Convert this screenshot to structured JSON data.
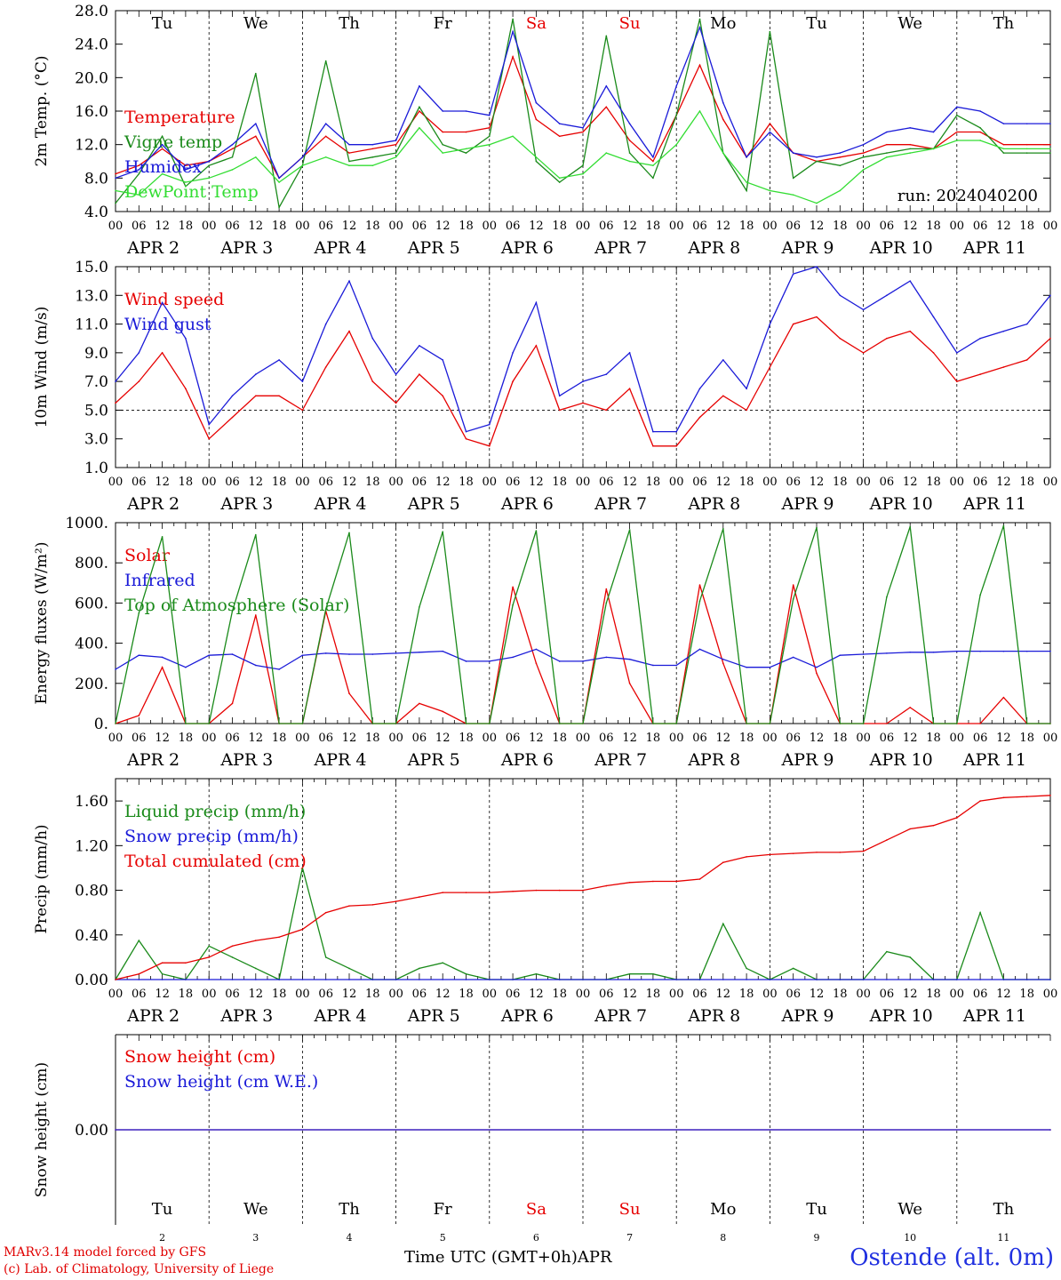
{
  "colors": {
    "red": "#e60000",
    "green": "#1a8a1a",
    "lightgreen": "#33dd33",
    "blue": "#1a1ad8",
    "weekend": "#e60000",
    "dash": "#000000"
  },
  "days": {
    "weekday_labels": [
      "Tu",
      "We",
      "Th",
      "Fr",
      "Sa",
      "Su",
      "Mo",
      "Tu",
      "We",
      "Th"
    ],
    "weekend_flags": [
      false,
      false,
      false,
      false,
      true,
      true,
      false,
      false,
      false,
      false
    ],
    "hour_ticks": [
      "00",
      "06",
      "12",
      "18"
    ],
    "month": "APR",
    "day_numbers": [
      "2",
      "3",
      "4",
      "5",
      "6",
      "7",
      "8",
      "9",
      "10",
      "11"
    ]
  },
  "chart_data": [
    {
      "type": "line",
      "ylabel": "2m Temp. (°C)",
      "ylim": [
        4.0,
        28.0
      ],
      "yticks": [
        "4.0",
        "8.0",
        "12.0",
        "16.0",
        "20.0",
        "24.0",
        "28.0"
      ],
      "annotation": "run: 2024040200",
      "x_unit": "hours since APR 2 00 UTC",
      "x": [
        0,
        6,
        12,
        18,
        24,
        30,
        36,
        42,
        48,
        54,
        60,
        66,
        72,
        78,
        84,
        90,
        96,
        102,
        108,
        114,
        120,
        126,
        132,
        138,
        144,
        150,
        156,
        162,
        168,
        174,
        180,
        186,
        192,
        198,
        204,
        210,
        216,
        222,
        228,
        234,
        240
      ],
      "series": [
        {
          "name": "Temperature",
          "color": "#e60000",
          "values": [
            8.5,
            9.5,
            11.5,
            9.5,
            10.0,
            11.5,
            13.0,
            8.0,
            10.5,
            13.0,
            11.0,
            11.5,
            12.0,
            16.0,
            13.5,
            13.5,
            14.0,
            22.5,
            15.0,
            13.0,
            13.5,
            16.5,
            12.5,
            10.0,
            15.5,
            21.5,
            15.0,
            10.5,
            14.5,
            11.0,
            10.0,
            10.5,
            11.0,
            12.0,
            12.0,
            11.5,
            13.5,
            13.5,
            12.0,
            12.0,
            12.0
          ]
        },
        {
          "name": "Vigne temp",
          "color": "#1a8a1a",
          "values": [
            5.0,
            8.5,
            13.0,
            7.0,
            9.5,
            10.5,
            20.5,
            4.5,
            9.5,
            22.0,
            10.0,
            10.5,
            11.0,
            16.5,
            12.0,
            11.0,
            13.0,
            27.0,
            10.0,
            7.5,
            9.5,
            25.0,
            11.0,
            8.0,
            15.5,
            27.0,
            11.0,
            6.5,
            25.5,
            8.0,
            10.0,
            9.5,
            10.5,
            11.0,
            11.5,
            11.5,
            15.5,
            14.0,
            11.0,
            11.0,
            11.0
          ]
        },
        {
          "name": "Humidex",
          "color": "#1a1ad8",
          "values": [
            8.0,
            9.0,
            12.0,
            9.0,
            10.0,
            12.0,
            14.5,
            8.0,
            10.5,
            14.5,
            12.0,
            12.0,
            12.5,
            19.0,
            16.0,
            16.0,
            15.5,
            25.5,
            17.0,
            14.5,
            14.0,
            19.0,
            14.5,
            10.5,
            19.0,
            26.0,
            17.0,
            10.5,
            13.5,
            11.0,
            10.5,
            11.0,
            12.0,
            13.5,
            14.0,
            13.5,
            16.5,
            16.0,
            14.5,
            14.5,
            14.5
          ]
        },
        {
          "name": "DewPoint Temp",
          "color": "#33dd33",
          "values": [
            6.5,
            6.0,
            8.5,
            7.5,
            8.0,
            9.0,
            10.5,
            7.5,
            9.5,
            10.5,
            9.5,
            9.5,
            10.5,
            14.0,
            11.0,
            11.5,
            12.0,
            13.0,
            10.5,
            8.0,
            8.5,
            11.0,
            10.0,
            9.5,
            12.0,
            16.0,
            11.0,
            7.5,
            6.5,
            6.0,
            5.0,
            6.5,
            9.0,
            10.5,
            11.0,
            11.5,
            12.5,
            12.5,
            11.5,
            11.5,
            11.5
          ]
        }
      ]
    },
    {
      "type": "line",
      "ylabel": "10m Wind (m/s)",
      "ylim": [
        1.0,
        15.0
      ],
      "yticks": [
        "1.0",
        "3.0",
        "5.0",
        "7.0",
        "9.0",
        "11.0",
        "13.0",
        "15.0"
      ],
      "ref_line": 5.0,
      "x": [
        0,
        6,
        12,
        18,
        24,
        30,
        36,
        42,
        48,
        54,
        60,
        66,
        72,
        78,
        84,
        90,
        96,
        102,
        108,
        114,
        120,
        126,
        132,
        138,
        144,
        150,
        156,
        162,
        168,
        174,
        180,
        186,
        192,
        198,
        204,
        210,
        216,
        222,
        228,
        234,
        240
      ],
      "series": [
        {
          "name": "Wind speed",
          "color": "#e60000",
          "values": [
            5.5,
            7.0,
            9.0,
            6.5,
            3.0,
            4.5,
            6.0,
            6.0,
            5.0,
            8.0,
            10.5,
            7.0,
            5.5,
            7.5,
            6.0,
            3.0,
            2.5,
            7.0,
            9.5,
            5.0,
            5.5,
            5.0,
            6.5,
            2.5,
            2.5,
            4.5,
            6.0,
            5.0,
            8.0,
            11.0,
            11.5,
            10.0,
            9.0,
            10.0,
            10.5,
            9.0,
            7.0,
            7.5,
            8.0,
            8.5,
            10.0
          ]
        },
        {
          "name": "Wind gust",
          "color": "#1a1ad8",
          "values": [
            7.0,
            9.0,
            12.5,
            10.0,
            4.0,
            6.0,
            7.5,
            8.5,
            7.0,
            11.0,
            14.0,
            10.0,
            7.5,
            9.5,
            8.5,
            3.5,
            4.0,
            9.0,
            12.5,
            6.0,
            7.0,
            7.5,
            9.0,
            3.5,
            3.5,
            6.5,
            8.5,
            6.5,
            11.0,
            14.5,
            15.0,
            13.0,
            12.0,
            13.0,
            14.0,
            11.5,
            9.0,
            10.0,
            10.5,
            11.0,
            13.0
          ]
        }
      ]
    },
    {
      "type": "line",
      "ylabel": "Energy fluxes (W/m²)",
      "ylim": [
        0,
        1000
      ],
      "yticks": [
        "0.",
        "200.",
        "400.",
        "600.",
        "800.",
        "1000."
      ],
      "x": [
        0,
        6,
        12,
        18,
        24,
        30,
        36,
        42,
        48,
        54,
        60,
        66,
        72,
        78,
        84,
        90,
        96,
        102,
        108,
        114,
        120,
        126,
        132,
        138,
        144,
        150,
        156,
        162,
        168,
        174,
        180,
        186,
        192,
        198,
        204,
        210,
        216,
        222,
        228,
        234,
        240
      ],
      "series": [
        {
          "name": "Solar",
          "color": "#e60000",
          "values": [
            0,
            40,
            280,
            0,
            0,
            100,
            540,
            0,
            0,
            560,
            150,
            0,
            0,
            100,
            60,
            0,
            0,
            680,
            300,
            0,
            0,
            670,
            200,
            0,
            0,
            690,
            300,
            0,
            0,
            690,
            250,
            0,
            0,
            0,
            80,
            0,
            0,
            0,
            130,
            0,
            0
          ]
        },
        {
          "name": "Infrared",
          "color": "#1a1ad8",
          "values": [
            270,
            340,
            330,
            280,
            340,
            345,
            290,
            270,
            340,
            350,
            345,
            345,
            350,
            355,
            360,
            310,
            310,
            330,
            370,
            310,
            310,
            330,
            320,
            290,
            290,
            370,
            320,
            280,
            280,
            330,
            280,
            340,
            345,
            350,
            355,
            355,
            360,
            360,
            360,
            360,
            360
          ]
        },
        {
          "name": "Top of Atmosphere (Solar)",
          "color": "#1a8a1a",
          "values": [
            0,
            550,
            930,
            0,
            0,
            560,
            940,
            0,
            0,
            570,
            950,
            0,
            0,
            580,
            955,
            0,
            0,
            590,
            960,
            0,
            0,
            600,
            965,
            0,
            0,
            610,
            970,
            0,
            0,
            620,
            975,
            0,
            0,
            630,
            980,
            0,
            0,
            640,
            985,
            0,
            0
          ]
        }
      ]
    },
    {
      "type": "line",
      "ylabel": "Precip (mm/h)",
      "ylim": [
        0.0,
        1.8
      ],
      "yticks": [
        "0.00",
        "0.40",
        "0.80",
        "1.20",
        "1.60"
      ],
      "x": [
        0,
        6,
        12,
        18,
        24,
        30,
        36,
        42,
        48,
        54,
        60,
        66,
        72,
        78,
        84,
        90,
        96,
        102,
        108,
        114,
        120,
        126,
        132,
        138,
        144,
        150,
        156,
        162,
        168,
        174,
        180,
        186,
        192,
        198,
        204,
        210,
        216,
        222,
        228,
        234,
        240
      ],
      "series": [
        {
          "name": "Liquid precip (mm/h)",
          "color": "#1a8a1a",
          "values": [
            0,
            0.35,
            0.05,
            0,
            0.3,
            0.2,
            0.1,
            0,
            1.0,
            0.2,
            0.1,
            0,
            0,
            0.1,
            0.15,
            0.05,
            0,
            0,
            0.05,
            0,
            0,
            0,
            0.05,
            0.05,
            0,
            0,
            0.5,
            0.1,
            0,
            0.1,
            0,
            0,
            0,
            0.25,
            0.2,
            0,
            0,
            0.6,
            0,
            0,
            0
          ]
        },
        {
          "name": "Snow precip (mm/h)",
          "color": "#1a1ad8",
          "values": [
            0,
            0,
            0,
            0,
            0,
            0,
            0,
            0,
            0,
            0,
            0,
            0,
            0,
            0,
            0,
            0,
            0,
            0,
            0,
            0,
            0,
            0,
            0,
            0,
            0,
            0,
            0,
            0,
            0,
            0,
            0,
            0,
            0,
            0,
            0,
            0,
            0,
            0,
            0,
            0,
            0
          ]
        },
        {
          "name": "Total cumulated (cm)",
          "color": "#e60000",
          "values": [
            0,
            0.05,
            0.15,
            0.15,
            0.2,
            0.3,
            0.35,
            0.38,
            0.45,
            0.6,
            0.66,
            0.67,
            0.7,
            0.74,
            0.78,
            0.78,
            0.78,
            0.79,
            0.8,
            0.8,
            0.8,
            0.84,
            0.87,
            0.88,
            0.88,
            0.9,
            1.05,
            1.1,
            1.12,
            1.13,
            1.14,
            1.14,
            1.15,
            1.25,
            1.35,
            1.38,
            1.45,
            1.6,
            1.63,
            1.64,
            1.65
          ]
        }
      ]
    },
    {
      "type": "line",
      "ylabel": "Snow height (cm)",
      "ylim": [
        -1,
        1
      ],
      "yticks": [
        "0.00"
      ],
      "x": [
        0,
        240
      ],
      "series": [
        {
          "name": "Snow height (cm)",
          "color": "#e60000",
          "values": [
            0,
            0
          ]
        },
        {
          "name": "Snow height (cm W.E.)",
          "color": "#1a1ad8",
          "values": [
            0,
            0
          ]
        }
      ]
    }
  ],
  "footer": {
    "model": "MARv3.14 model forced by GFS",
    "credit": "(c) Lab. of Climatology, University of Liege",
    "xlabel": "Time UTC (GMT+0h)",
    "month": "APR",
    "station": "Ostende (alt. 0m)"
  }
}
